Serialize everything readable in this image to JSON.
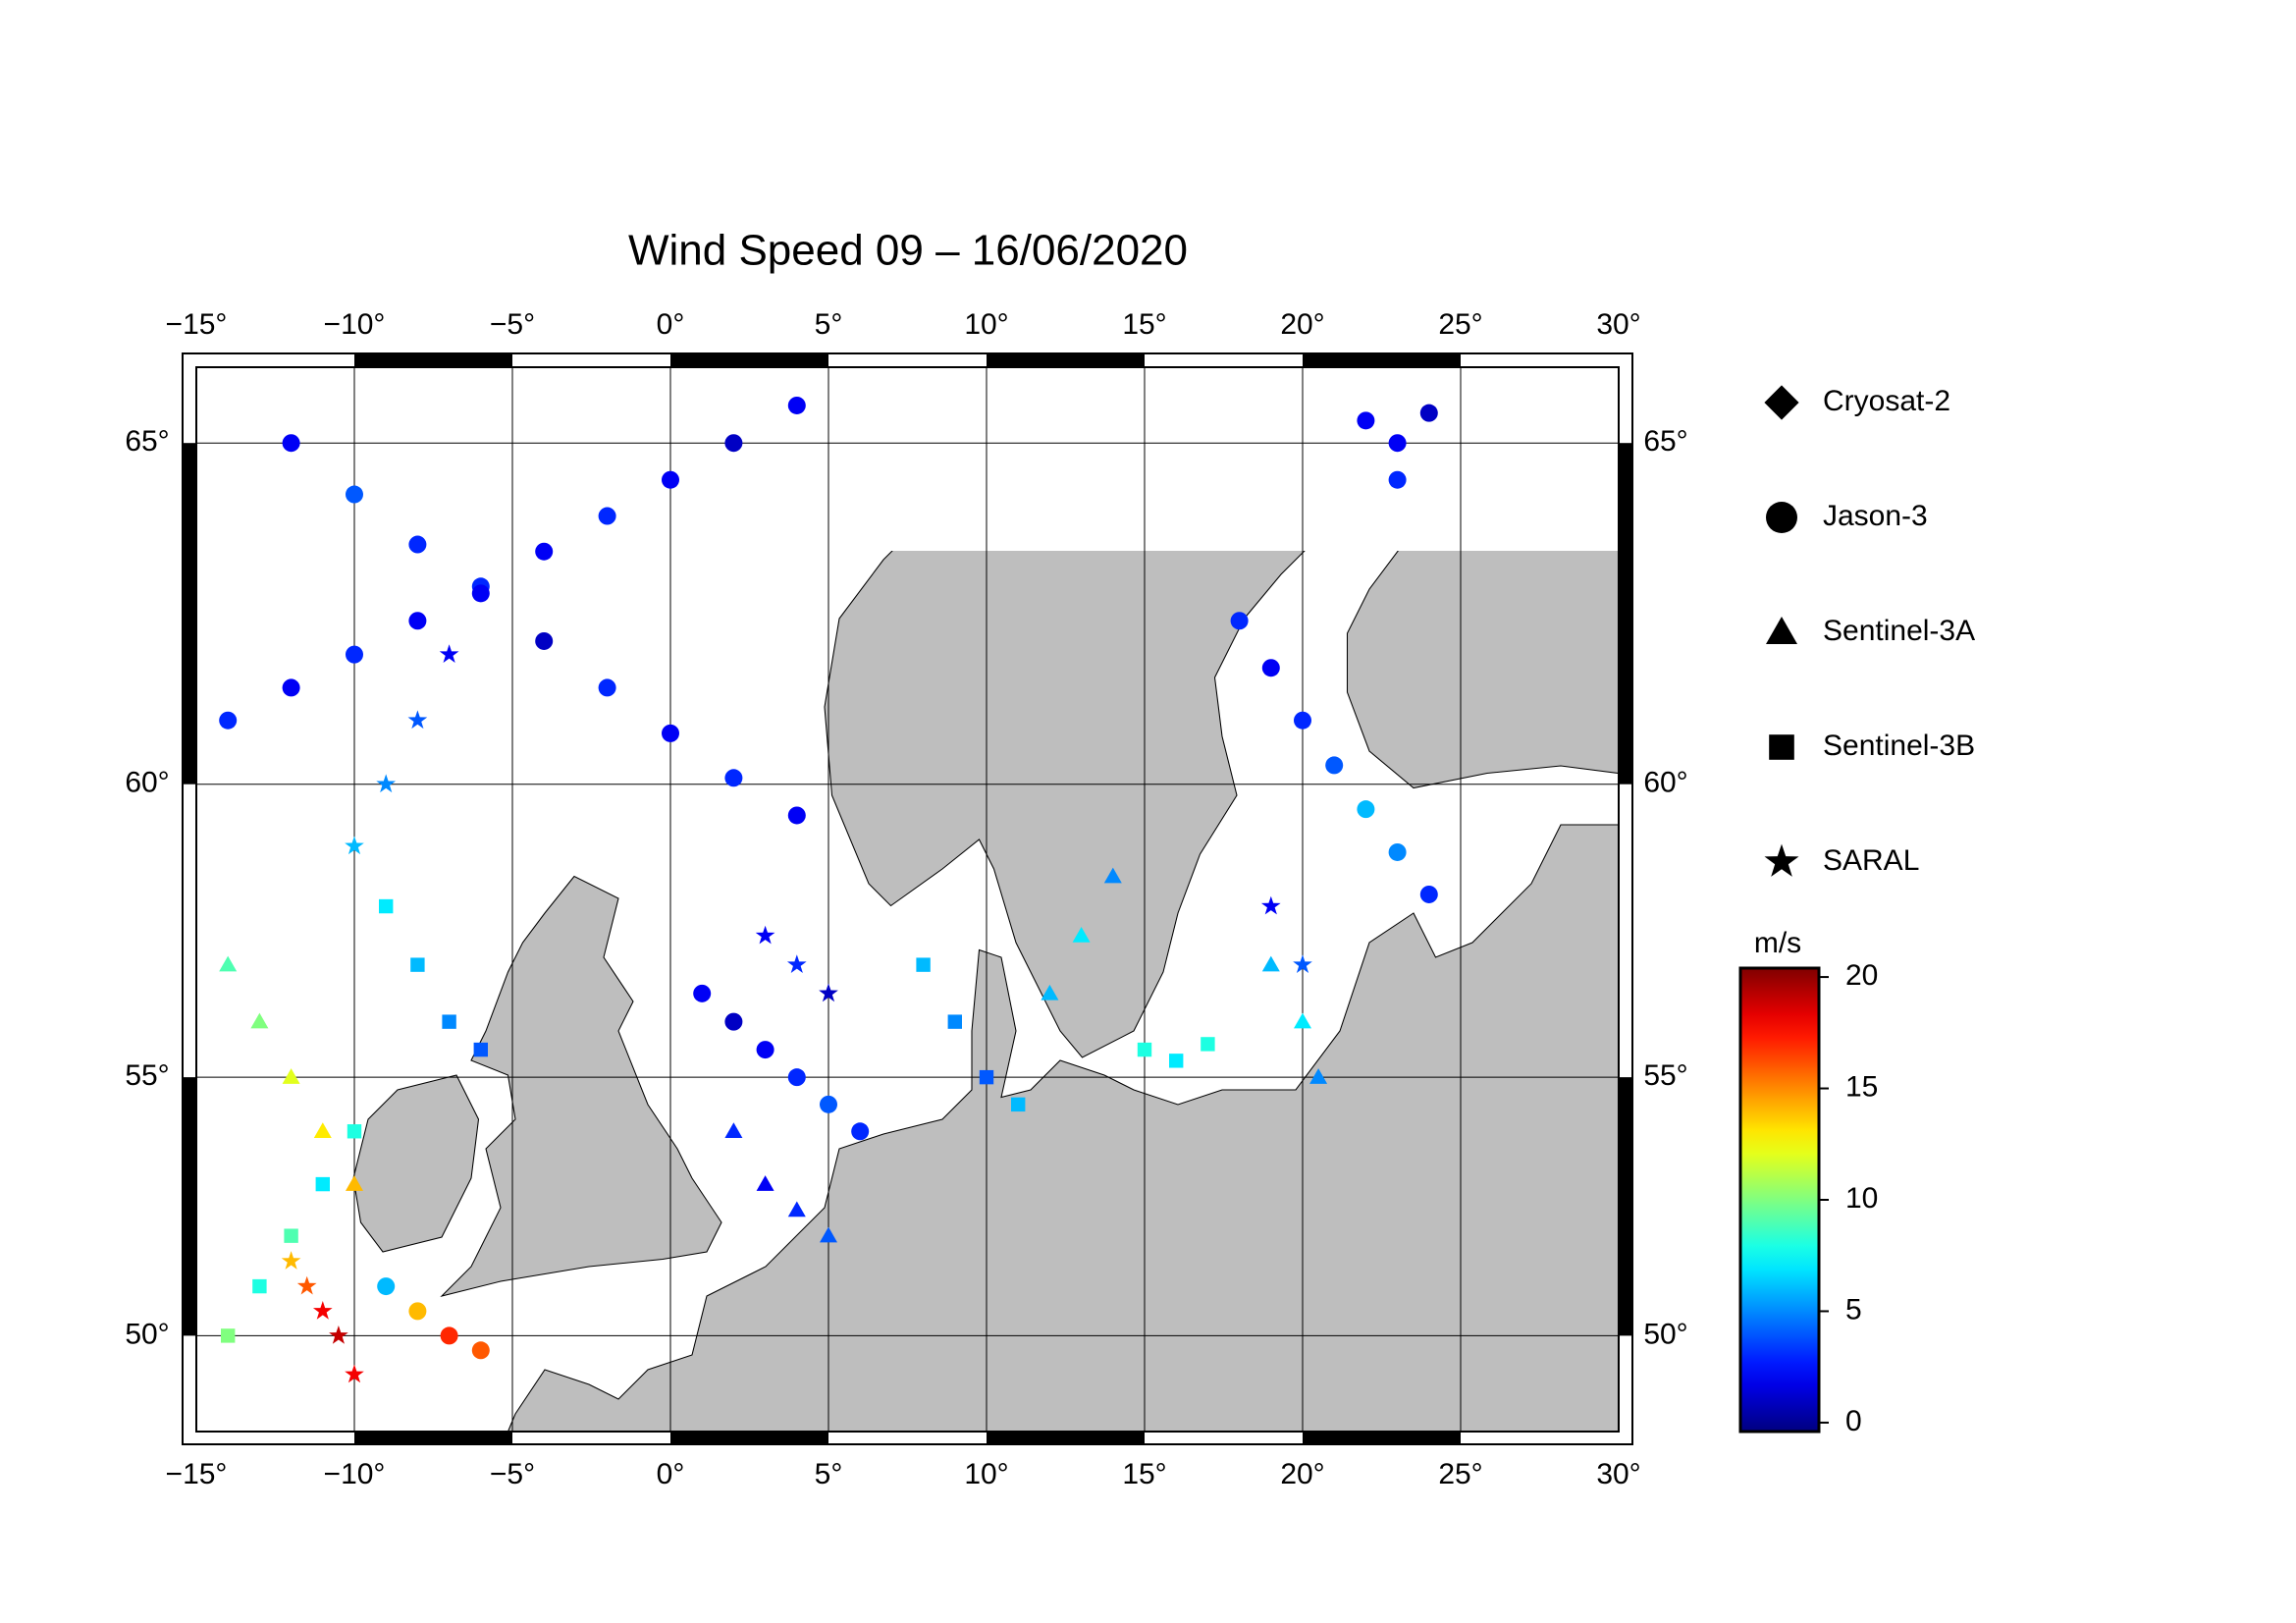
{
  "chart_data": {
    "type": "map-scatter",
    "title": "Wind Speed 09 – 16/06/2020",
    "xlim": [
      -15,
      30
    ],
    "ylim": [
      48,
      66
    ],
    "xticks": [
      {
        "value": -15,
        "label": "−15°"
      },
      {
        "value": -10,
        "label": "−10°"
      },
      {
        "value": -5,
        "label": "−5°"
      },
      {
        "value": 0,
        "label": "0°"
      },
      {
        "value": 5,
        "label": "5°"
      },
      {
        "value": 10,
        "label": "10°"
      },
      {
        "value": 15,
        "label": "15°"
      },
      {
        "value": 20,
        "label": "20°"
      },
      {
        "value": 25,
        "label": "25°"
      },
      {
        "value": 30,
        "label": "30°"
      }
    ],
    "yticks": [
      {
        "value": 50,
        "label": "50°"
      },
      {
        "value": 55,
        "label": "55°"
      },
      {
        "value": 60,
        "label": "60°"
      },
      {
        "value": 65,
        "label": "65°"
      }
    ],
    "grid": true,
    "colormap": "jet",
    "colorbar": {
      "label": "m/s",
      "lim": [
        -0.4,
        20.4
      ],
      "ticks": [
        0,
        5,
        10,
        15,
        20
      ]
    },
    "series": [
      {
        "name": "Cryosat-2",
        "marker": "diamond",
        "lon": [],
        "lat": [],
        "speed": []
      },
      {
        "name": "Jason-3",
        "marker": "circle",
        "lon": [
          -14,
          -12,
          -10,
          -8,
          -6,
          -4,
          -2,
          0,
          2,
          4,
          -12,
          -10,
          -8,
          -6,
          -4,
          -2,
          0,
          2,
          4,
          18,
          19,
          20,
          21,
          22,
          23,
          24,
          22,
          23,
          24,
          23,
          1,
          2,
          3,
          4,
          5,
          6,
          -9,
          -8,
          -7,
          -6
        ],
        "lat": [
          61,
          61.5,
          62,
          62.5,
          63,
          63.5,
          64,
          64.5,
          65,
          65.5,
          65,
          64.3,
          63.6,
          62.9,
          62.2,
          61.5,
          60.8,
          60.1,
          59.5,
          62.5,
          61.8,
          61,
          60.3,
          59.6,
          58.9,
          58.2,
          65.3,
          65,
          65.4,
          64.5,
          56.5,
          56,
          55.5,
          55,
          54.5,
          54,
          51,
          50.5,
          50,
          49.7
        ],
        "speed": [
          3,
          2,
          3,
          2,
          3,
          2,
          3,
          2,
          1,
          2,
          2,
          4,
          3,
          2,
          1,
          3,
          2,
          3,
          2,
          3,
          2,
          3,
          4,
          6,
          5,
          3,
          2,
          2,
          1,
          3,
          2,
          1,
          2,
          3,
          4,
          3,
          6,
          14,
          17,
          16
        ]
      },
      {
        "name": "Sentinel-3A",
        "marker": "triangle",
        "lon": [
          -14,
          -13,
          -12,
          -11,
          -10,
          2,
          3,
          4,
          5,
          14,
          13,
          12,
          19,
          20,
          20.5
        ],
        "lat": [
          57,
          56,
          55,
          54,
          53,
          54,
          53,
          52.5,
          52,
          58.5,
          57.5,
          56.5,
          57,
          56,
          55
        ],
        "speed": [
          9,
          10,
          12,
          13,
          14,
          3,
          2,
          3,
          4,
          5,
          7,
          6,
          6,
          7,
          5
        ]
      },
      {
        "name": "Sentinel-3B",
        "marker": "square",
        "lon": [
          -14,
          -13,
          -12,
          -11,
          -10,
          -9,
          -8,
          -7,
          -6,
          8,
          9,
          10,
          11,
          15,
          16,
          17
        ],
        "lat": [
          50,
          51,
          52,
          53,
          54,
          58,
          57,
          56,
          55.5,
          57,
          56,
          55,
          54.5,
          55.5,
          55.3,
          55.6
        ],
        "speed": [
          10,
          8,
          9,
          7,
          8,
          7,
          6,
          5,
          4,
          6,
          5,
          4,
          6,
          8,
          7,
          8
        ]
      },
      {
        "name": "SARAL",
        "marker": "star",
        "lon": [
          -12,
          -11.5,
          -11,
          -10.5,
          -10,
          -7,
          -8,
          -9,
          -10,
          3,
          4,
          5,
          19,
          20
        ],
        "lat": [
          51.5,
          51,
          50.5,
          50,
          49.2,
          62,
          61,
          60,
          59,
          57.5,
          57,
          56.5,
          58,
          57
        ],
        "speed": [
          14,
          16,
          18,
          19,
          18,
          2,
          4,
          5,
          6,
          2,
          3,
          1,
          2,
          4
        ]
      }
    ]
  }
}
